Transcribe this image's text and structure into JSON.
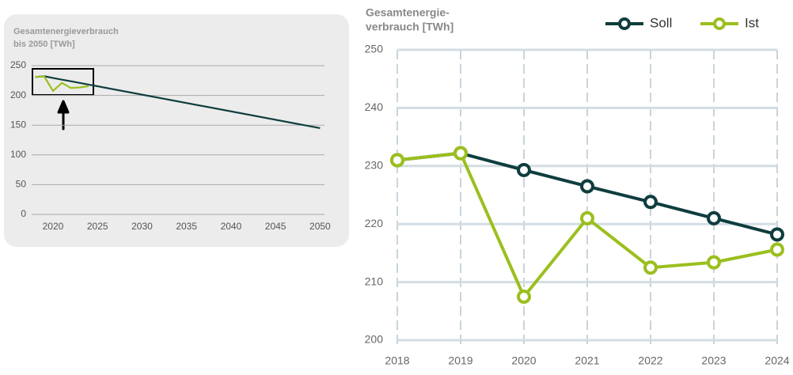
{
  "chart_data": [
    {
      "type": "line",
      "title_lines": [
        "Gesamtenergieverbrauch",
        "bis 2050 [TWh]"
      ],
      "x": [
        2018,
        2019,
        2020,
        2021,
        2022,
        2023,
        2024,
        2050
      ],
      "series": [
        {
          "name": "Soll",
          "color": "#0f3d3e",
          "values": [
            231,
            232.2,
            229.3,
            226.5,
            223.8,
            221,
            218.2,
            145
          ]
        },
        {
          "name": "Ist",
          "color": "#9bbf1e",
          "values": [
            231,
            232.2,
            207.5,
            221,
            212.5,
            213.4,
            215.6,
            null
          ]
        }
      ],
      "xlim": [
        2017.6,
        2050.5
      ],
      "xticks": [
        2020,
        2025,
        2030,
        2035,
        2040,
        2045,
        2050
      ],
      "ylim": [
        0,
        250
      ],
      "yticks": [
        0,
        50,
        100,
        150,
        200,
        250
      ],
      "grid": true,
      "markers": false
    },
    {
      "type": "line",
      "title_lines": [
        "Gesamtenergie-",
        "verbrauch [TWh]"
      ],
      "x": [
        2018,
        2019,
        2020,
        2021,
        2022,
        2023,
        2024
      ],
      "series": [
        {
          "name": "Soll",
          "color": "#0f3d3e",
          "values": [
            231,
            232.2,
            229.3,
            226.5,
            223.8,
            221,
            218.2
          ]
        },
        {
          "name": "Ist",
          "color": "#9bbf1e",
          "values": [
            231,
            232.2,
            207.5,
            221,
            212.5,
            213.4,
            215.6
          ]
        }
      ],
      "xlim": [
        2018,
        2024
      ],
      "xticks": [
        2018,
        2019,
        2020,
        2021,
        2022,
        2023,
        2024
      ],
      "ylim": [
        200,
        250
      ],
      "yticks": [
        200,
        210,
        220,
        230,
        240,
        250
      ],
      "grid": true,
      "markers": true,
      "legend": "top-right"
    }
  ]
}
